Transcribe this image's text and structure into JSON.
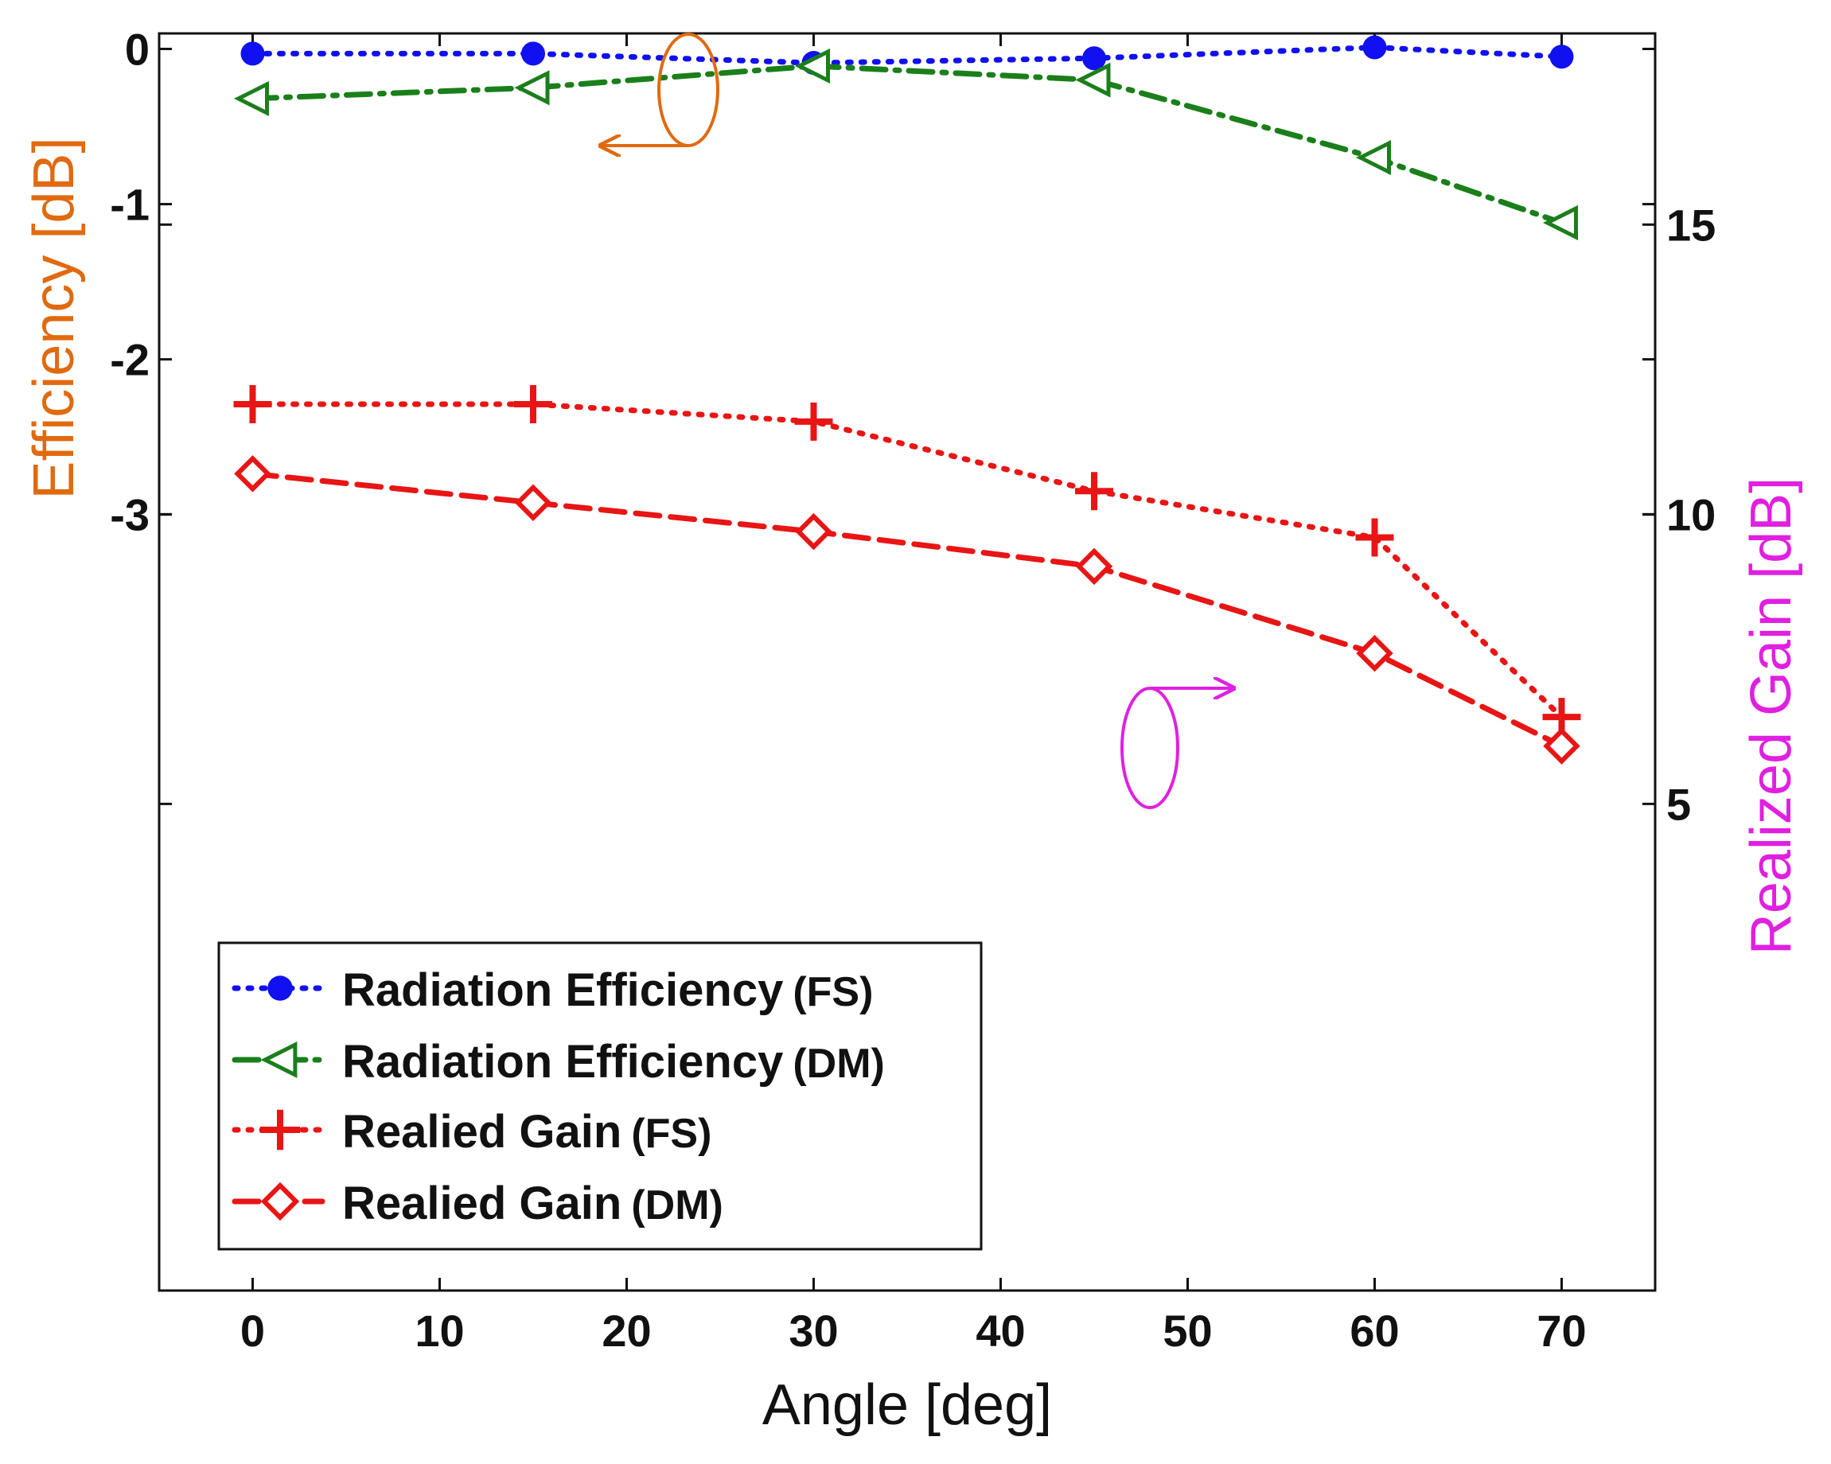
{
  "chart_data": {
    "type": "line",
    "title": "",
    "xlabel": "Angle [deg]",
    "ylabel_left": "Efficiency [dB]",
    "ylabel_right": "Realized Gain [dB]",
    "xlim": [
      -5,
      75
    ],
    "ylim_left": [
      -8,
      0.1
    ],
    "ylim_right": [
      -3.4,
      18.3
    ],
    "x_ticks": [
      0,
      10,
      20,
      30,
      40,
      50,
      60,
      70
    ],
    "y_left_ticks": [
      0,
      -1,
      -2,
      -3
    ],
    "y_right_ticks": [
      15,
      10,
      5
    ],
    "grid": false,
    "legend_position": "bottom-left",
    "x": [
      0,
      15,
      30,
      45,
      60,
      70
    ],
    "series": [
      {
        "name": "Radiation Efficiency",
        "tag": "(FS)",
        "axis": "left",
        "color": "#1010f0",
        "line": "dotted",
        "marker": "filled-circle",
        "values": [
          -0.03,
          -0.03,
          -0.09,
          -0.06,
          0.01,
          -0.05
        ]
      },
      {
        "name": "Radiation Efficiency",
        "tag": "(DM)",
        "axis": "left",
        "color": "#1a7f1a",
        "line": "dash-dot",
        "marker": "left-triangle",
        "values": [
          -0.32,
          -0.25,
          -0.11,
          -0.2,
          -0.7,
          -1.12
        ]
      },
      {
        "name": "Realied Gain",
        "tag": "(FS)",
        "axis": "right",
        "color": "#e81515",
        "line": "dotted",
        "marker": "plus",
        "values": [
          11.9,
          11.9,
          11.6,
          10.4,
          9.6,
          6.5
        ]
      },
      {
        "name": "Realied Gain",
        "tag": "(DM)",
        "axis": "right",
        "color": "#e81515",
        "line": "dashed",
        "marker": "diamond",
        "values": [
          10.7,
          10.2,
          9.7,
          9.1,
          7.6,
          6.0
        ]
      }
    ],
    "annotations": [
      {
        "name": "efficiency-axis-indicator",
        "color": "#e06a10",
        "points_to": "left",
        "at": [
          23,
          -0.17
        ]
      },
      {
        "name": "gain-axis-indicator",
        "color": "#e020e0",
        "points_to": "right",
        "at": [
          48,
          9.7
        ]
      }
    ],
    "colors": {
      "left_axis_title": "#e06a10",
      "right_axis_title": "#e020e0",
      "axis": "#111111"
    }
  }
}
